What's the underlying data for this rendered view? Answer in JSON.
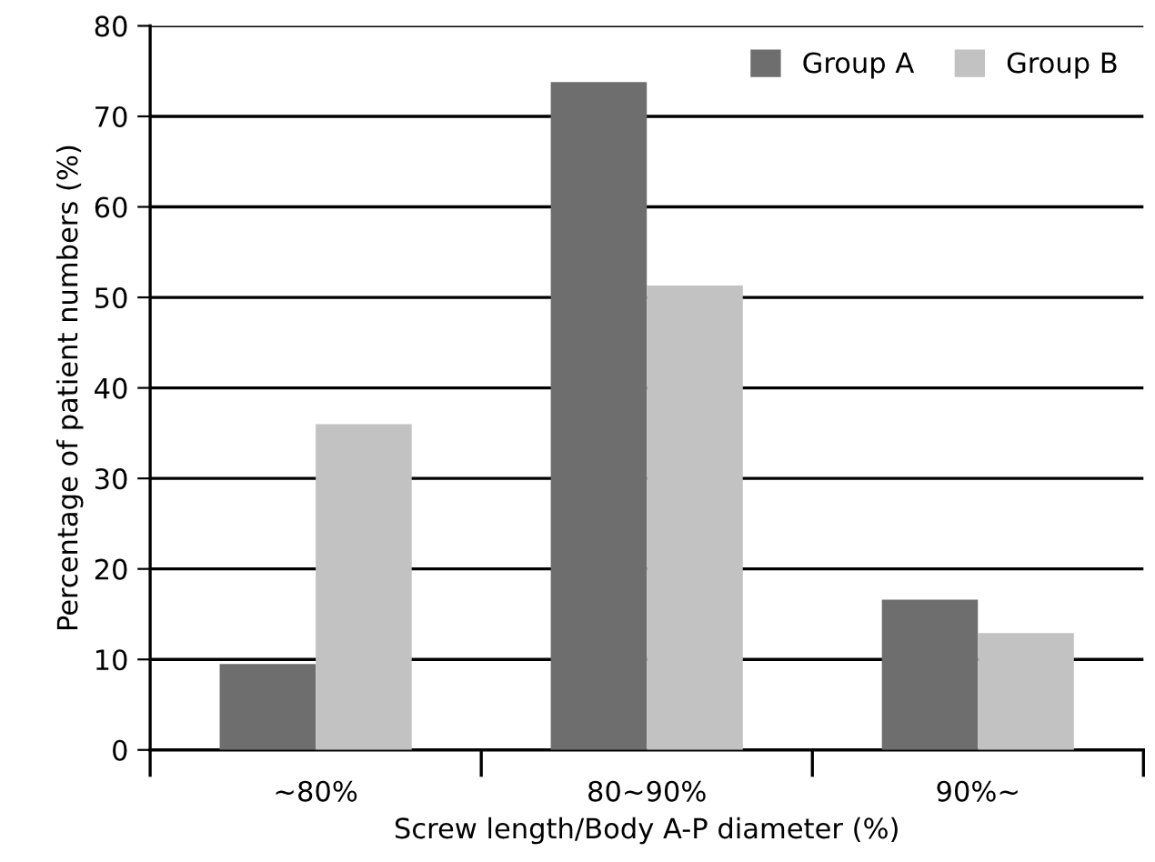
{
  "chart_data": {
    "type": "bar",
    "xlabel": "Screw length/Body A-P diameter (%)",
    "ylabel": "Percentage of patient numbers (%)",
    "categories": [
      "~80%",
      "80~90%",
      "90%~"
    ],
    "series": [
      {
        "name": "Group A",
        "color": "#6e6e6e",
        "values": [
          9.5,
          73.8,
          16.6
        ]
      },
      {
        "name": "Group B",
        "color": "#c2c2c2",
        "values": [
          36,
          51.3,
          12.9
        ]
      }
    ],
    "ylim": [
      0,
      80
    ],
    "yticks": [
      0,
      10,
      20,
      30,
      40,
      50,
      60,
      70,
      80
    ],
    "grid": "y",
    "legend": "top right"
  }
}
